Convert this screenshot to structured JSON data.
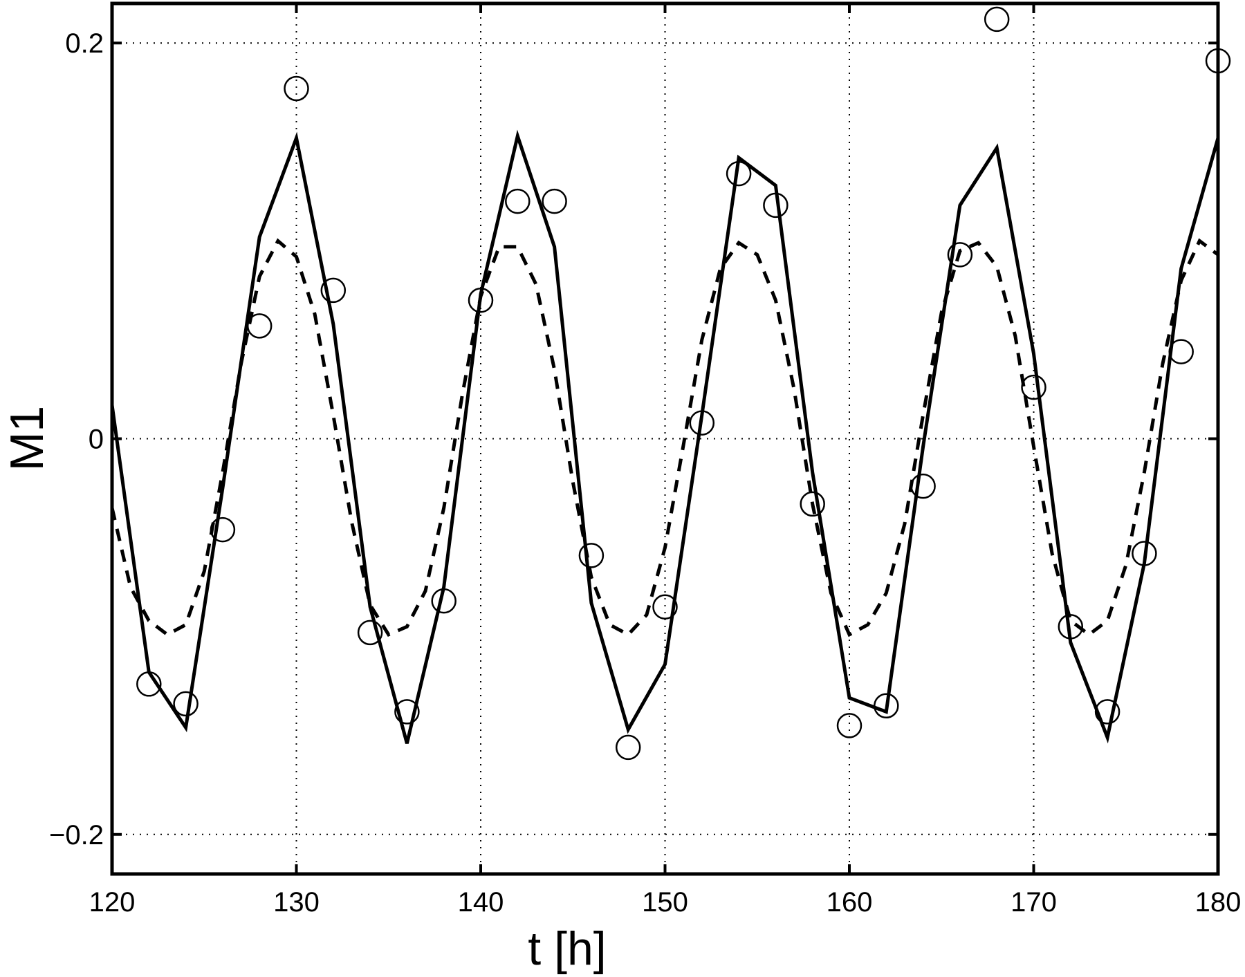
{
  "chart_data": {
    "type": "line",
    "title": "",
    "xlabel": "t [h]",
    "ylabel": "M1",
    "xlim": [
      120,
      180
    ],
    "ylim": [
      -0.22,
      0.22
    ],
    "xticks": [
      120,
      130,
      140,
      150,
      160,
      170,
      180
    ],
    "xtick_labels": [
      "120",
      "130",
      "140",
      "150",
      "160",
      "170",
      "180"
    ],
    "yticks": [
      -0.2,
      0,
      0.2
    ],
    "ytick_labels": [
      "−0.2",
      "0",
      "0.2"
    ],
    "grid": true,
    "legend": "none",
    "series": [
      {
        "style": "solid-line",
        "color": "#000000",
        "x": [
          120,
          122,
          124,
          126,
          128,
          130,
          132,
          134,
          136,
          138,
          140,
          142,
          144,
          146,
          148,
          150,
          152,
          154,
          156,
          158,
          160,
          162,
          164,
          166,
          168,
          170,
          172,
          174,
          176,
          178,
          180
        ],
        "y": [
          0.017,
          -0.118,
          -0.146,
          -0.025,
          0.102,
          0.152,
          0.058,
          -0.085,
          -0.154,
          -0.075,
          0.073,
          0.153,
          0.097,
          -0.083,
          -0.147,
          -0.114,
          0.012,
          0.142,
          0.128,
          -0.017,
          -0.131,
          -0.138,
          -0.004,
          0.118,
          0.147,
          0.043,
          -0.103,
          -0.151,
          -0.063,
          0.086,
          0.152
        ]
      },
      {
        "style": "dashed-line",
        "color": "#000000",
        "x": [
          120,
          121,
          122,
          123,
          124,
          125,
          126,
          127,
          128,
          129,
          130,
          131,
          132,
          133,
          134,
          135,
          136,
          137,
          138,
          139,
          140,
          141,
          142,
          143,
          144,
          145,
          146,
          147,
          148,
          149,
          150,
          151,
          152,
          153,
          154,
          155,
          156,
          157,
          158,
          159,
          160,
          161,
          162,
          163,
          164,
          165,
          166,
          167,
          168,
          169,
          170,
          171,
          172,
          173,
          174,
          175,
          176,
          177,
          178,
          179,
          180
        ],
        "y": [
          -0.035,
          -0.075,
          -0.092,
          -0.099,
          -0.094,
          -0.067,
          -0.017,
          0.038,
          0.082,
          0.1,
          0.092,
          0.063,
          0.012,
          -0.042,
          -0.084,
          -0.099,
          -0.095,
          -0.077,
          -0.035,
          0.022,
          0.072,
          0.097,
          0.097,
          0.078,
          0.035,
          -0.022,
          -0.07,
          -0.094,
          -0.099,
          -0.089,
          -0.055,
          -0.003,
          0.05,
          0.086,
          0.099,
          0.093,
          0.07,
          0.025,
          -0.033,
          -0.078,
          -0.099,
          -0.094,
          -0.078,
          -0.043,
          0.012,
          0.064,
          0.095,
          0.099,
          0.087,
          0.052,
          -0.004,
          -0.058,
          -0.092,
          -0.099,
          -0.092,
          -0.064,
          -0.017,
          0.038,
          0.08,
          0.1,
          0.093
        ]
      },
      {
        "style": "open-circle-markers",
        "color": "#000000",
        "x": [
          122,
          124,
          126,
          128,
          130,
          132,
          134,
          136,
          138,
          140,
          142,
          144,
          146,
          148,
          150,
          152,
          154,
          156,
          158,
          160,
          162,
          164,
          166,
          168,
          170,
          172,
          174,
          176,
          178,
          180
        ],
        "y": [
          -0.124,
          -0.134,
          -0.046,
          0.057,
          0.177,
          0.075,
          -0.098,
          -0.138,
          -0.082,
          0.07,
          0.12,
          0.12,
          -0.059,
          -0.156,
          -0.085,
          0.008,
          0.134,
          0.118,
          -0.033,
          -0.145,
          -0.135,
          -0.024,
          0.093,
          0.212,
          0.026,
          -0.095,
          -0.138,
          -0.058,
          0.044,
          0.191
        ]
      }
    ]
  }
}
